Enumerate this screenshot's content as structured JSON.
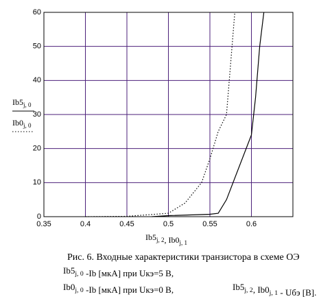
{
  "chart_data": {
    "type": "line",
    "series": [
      {
        "name": "Ib5",
        "subscript": "j, 0",
        "color": "#000000",
        "style": "solid",
        "x": [
          0.48,
          0.5,
          0.55,
          0.56,
          0.57,
          0.6,
          0.605,
          0.61,
          0.615
        ],
        "values": [
          0,
          0.3,
          0.7,
          1,
          5,
          24,
          35,
          50,
          60
        ]
      },
      {
        "name": "Ib0",
        "subscript": "j, 0",
        "color": "#000000",
        "style": "dotted",
        "x": [
          0.4,
          0.45,
          0.5,
          0.52,
          0.54,
          0.55,
          0.56,
          0.57,
          0.575,
          0.58
        ],
        "values": [
          0,
          0.1,
          1,
          4,
          10,
          17,
          25,
          30,
          45,
          60
        ]
      }
    ],
    "xlabel": [
      {
        "text": "Ib5",
        "sub": "j, 2"
      },
      {
        "text": ", Ib0",
        "sub": "j, 1"
      }
    ],
    "xlim": [
      0.35,
      0.65
    ],
    "xticks": [
      0.35,
      0.4,
      0.45,
      0.5,
      0.55,
      0.6
    ],
    "ylim": [
      0,
      60
    ],
    "yticks": [
      0,
      10,
      20,
      30,
      40,
      50,
      60
    ],
    "grid": true,
    "grid_color": "#4b1f7a"
  },
  "caption": {
    "title": "Рис. 6. Входные характеристики транзистора в схеме ОЭ",
    "line1": [
      {
        "text": "Ib5",
        "sub": "j, 0"
      },
      {
        "text": " -Ib [мкА] при Uкэ=5 В,"
      }
    ],
    "line2": [
      {
        "text": "Ib0",
        "sub": "j, 0"
      },
      {
        "text": " -Ib [мкА] при Uкэ=0 В,"
      }
    ],
    "line2_right": [
      {
        "text": "Ib5",
        "sub": "j, 2"
      },
      {
        "text": ", Ib0",
        "sub": "j, 1"
      },
      {
        "text": " - Uбэ [В]."
      }
    ]
  }
}
